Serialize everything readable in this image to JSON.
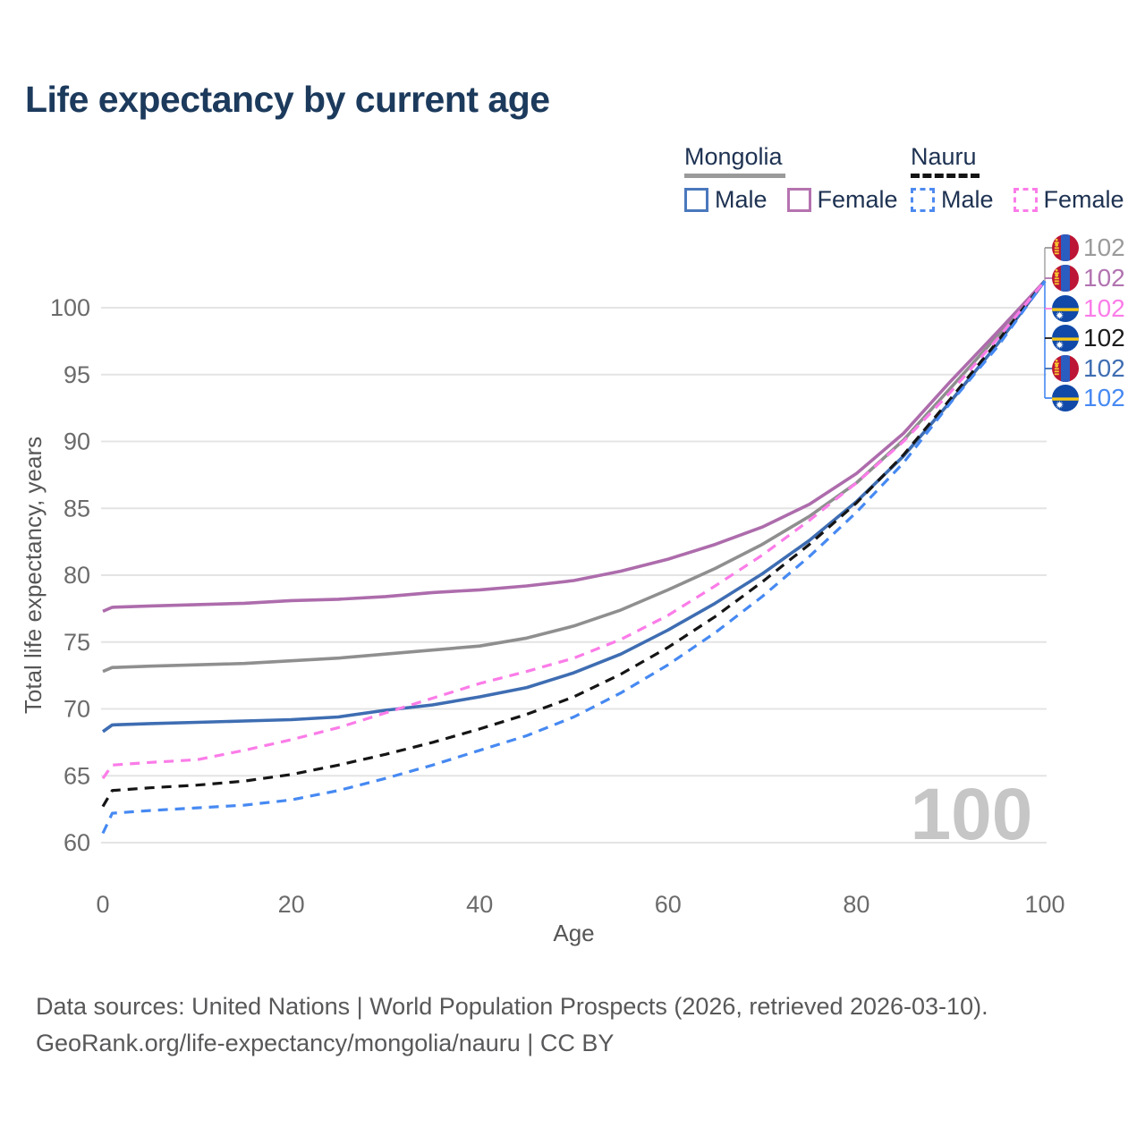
{
  "title": "Life expectancy by current age",
  "legend": {
    "groups": [
      {
        "country": "Mongolia",
        "line_style": "solid",
        "underline_color": "#9a9a9a",
        "items": [
          {
            "label": "Male",
            "color": "#4a78bc",
            "dashed": false
          },
          {
            "label": "Female",
            "color": "#b573b0",
            "dashed": false
          }
        ]
      },
      {
        "country": "Nauru",
        "line_style": "dashed",
        "underline_color": "#141414",
        "items": [
          {
            "label": "Male",
            "color": "#4d8af0",
            "dashed": true
          },
          {
            "label": "Female",
            "color": "#fb7ce8",
            "dashed": true
          }
        ]
      }
    ]
  },
  "watermark": "100",
  "footer": {
    "line1": "Data sources: United Nations | World Population Prospects (2026, retrieved 2026-03-10).",
    "line2": "GeoRank.org/life-expectancy/mongolia/nauru | CC BY"
  },
  "chart_data": {
    "type": "line",
    "title": "Life expectancy by current age",
    "xlabel": "Age",
    "ylabel": "Total life expectancy, years",
    "x_ticks": [
      0,
      20,
      40,
      60,
      80,
      100
    ],
    "y_ticks": [
      60,
      65,
      70,
      75,
      80,
      85,
      90,
      95,
      100
    ],
    "xlim": [
      0,
      100
    ],
    "ylim": [
      59.5,
      103
    ],
    "grid": "horizontal",
    "x": [
      0,
      1,
      5,
      10,
      15,
      20,
      25,
      30,
      35,
      40,
      45,
      50,
      55,
      60,
      65,
      70,
      75,
      80,
      85,
      90,
      95,
      100
    ],
    "series": [
      {
        "name": "Mongolia (both sexes)",
        "color": "#8f8f8f",
        "dashed": false,
        "values": [
          72.8,
          73.1,
          73.2,
          73.3,
          73.4,
          73.6,
          73.8,
          74.1,
          74.4,
          74.7,
          75.3,
          76.2,
          77.4,
          78.9,
          80.5,
          82.3,
          84.4,
          86.9,
          90.1,
          94.0,
          97.9,
          102
        ]
      },
      {
        "name": "Mongolia Female",
        "color": "#ad6cac",
        "dashed": false,
        "values": [
          77.3,
          77.6,
          77.7,
          77.8,
          77.9,
          78.1,
          78.2,
          78.4,
          78.7,
          78.9,
          79.2,
          79.6,
          80.3,
          81.2,
          82.3,
          83.6,
          85.3,
          87.6,
          90.6,
          94.5,
          98.2,
          102
        ]
      },
      {
        "name": "Mongolia Male",
        "color": "#3e6db2",
        "dashed": false,
        "values": [
          68.3,
          68.8,
          68.9,
          69.0,
          69.1,
          69.2,
          69.4,
          69.9,
          70.3,
          70.9,
          71.6,
          72.7,
          74.1,
          75.9,
          77.9,
          80.1,
          82.6,
          85.5,
          88.9,
          93.0,
          97.3,
          102
        ]
      },
      {
        "name": "Nauru (both sexes)",
        "color": "#151515",
        "dashed": true,
        "values": [
          62.7,
          63.9,
          64.1,
          64.3,
          64.6,
          65.1,
          65.8,
          66.6,
          67.5,
          68.5,
          69.6,
          70.9,
          72.6,
          74.6,
          76.9,
          79.5,
          82.3,
          85.4,
          89.0,
          93.2,
          97.5,
          102
        ]
      },
      {
        "name": "Nauru Male",
        "color": "#4689f2",
        "dashed": true,
        "values": [
          60.7,
          62.2,
          62.4,
          62.6,
          62.8,
          63.2,
          63.9,
          64.8,
          65.8,
          66.9,
          68.0,
          69.4,
          71.2,
          73.3,
          75.7,
          78.4,
          81.4,
          84.7,
          88.4,
          92.9,
          97.1,
          102
        ]
      },
      {
        "name": "Nauru Female",
        "color": "#fb7ce8",
        "dashed": true,
        "values": [
          64.8,
          65.8,
          66.0,
          66.2,
          66.9,
          67.7,
          68.6,
          69.7,
          70.8,
          71.9,
          72.8,
          73.8,
          75.2,
          77.0,
          79.2,
          81.5,
          84.1,
          86.9,
          90.0,
          93.7,
          97.7,
          102
        ]
      }
    ],
    "end_labels": [
      {
        "text": "102",
        "color": "#9b9b9b",
        "flag": "mn",
        "series": "Mongolia (both sexes)"
      },
      {
        "text": "102",
        "color": "#b273b0",
        "flag": "mn",
        "series": "Mongolia Female"
      },
      {
        "text": "102",
        "color": "#fb7ce8",
        "flag": "nr",
        "series": "Nauru Female"
      },
      {
        "text": "102",
        "color": "#1b1b1b",
        "flag": "nr",
        "series": "Nauru (both sexes)"
      },
      {
        "text": "102",
        "color": "#3e6db2",
        "flag": "mn",
        "series": "Mongolia Male"
      },
      {
        "text": "102",
        "color": "#4689f2",
        "flag": "nr",
        "series": "Nauru Male"
      }
    ],
    "legend_position": "top-right"
  }
}
